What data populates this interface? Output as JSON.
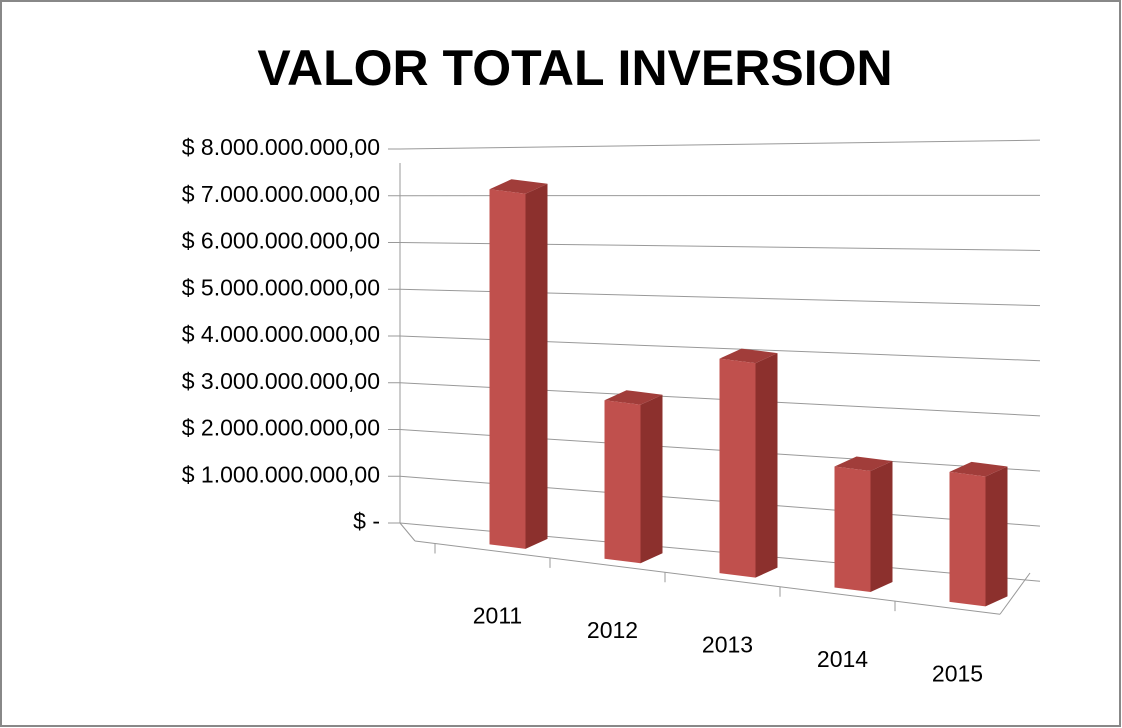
{
  "chart_data": {
    "type": "bar3d",
    "title": "VALOR TOTAL INVERSION",
    "categories": [
      "2011",
      "2012",
      "2013",
      "2014",
      "2015"
    ],
    "values": [
      7400000000,
      3200000000,
      4200000000,
      2300000000,
      2400000000
    ],
    "color": "#c0504d",
    "ylim": [
      0,
      8000000000
    ],
    "yticks": [
      {
        "value": 0,
        "label": "$ -"
      },
      {
        "value": 1000000000,
        "label": "$ 1.000.000.000,00"
      },
      {
        "value": 2000000000,
        "label": "$ 2.000.000.000,00"
      },
      {
        "value": 3000000000,
        "label": "$ 3.000.000.000,00"
      },
      {
        "value": 4000000000,
        "label": "$ 4.000.000.000,00"
      },
      {
        "value": 5000000000,
        "label": "$ 5.000.000.000,00"
      },
      {
        "value": 6000000000,
        "label": "$ 6.000.000.000,00"
      },
      {
        "value": 7000000000,
        "label": "$ 7.000.000.000,00"
      },
      {
        "value": 8000000000,
        "label": "$ 8.000.000.000,00"
      }
    ],
    "grid": true
  }
}
